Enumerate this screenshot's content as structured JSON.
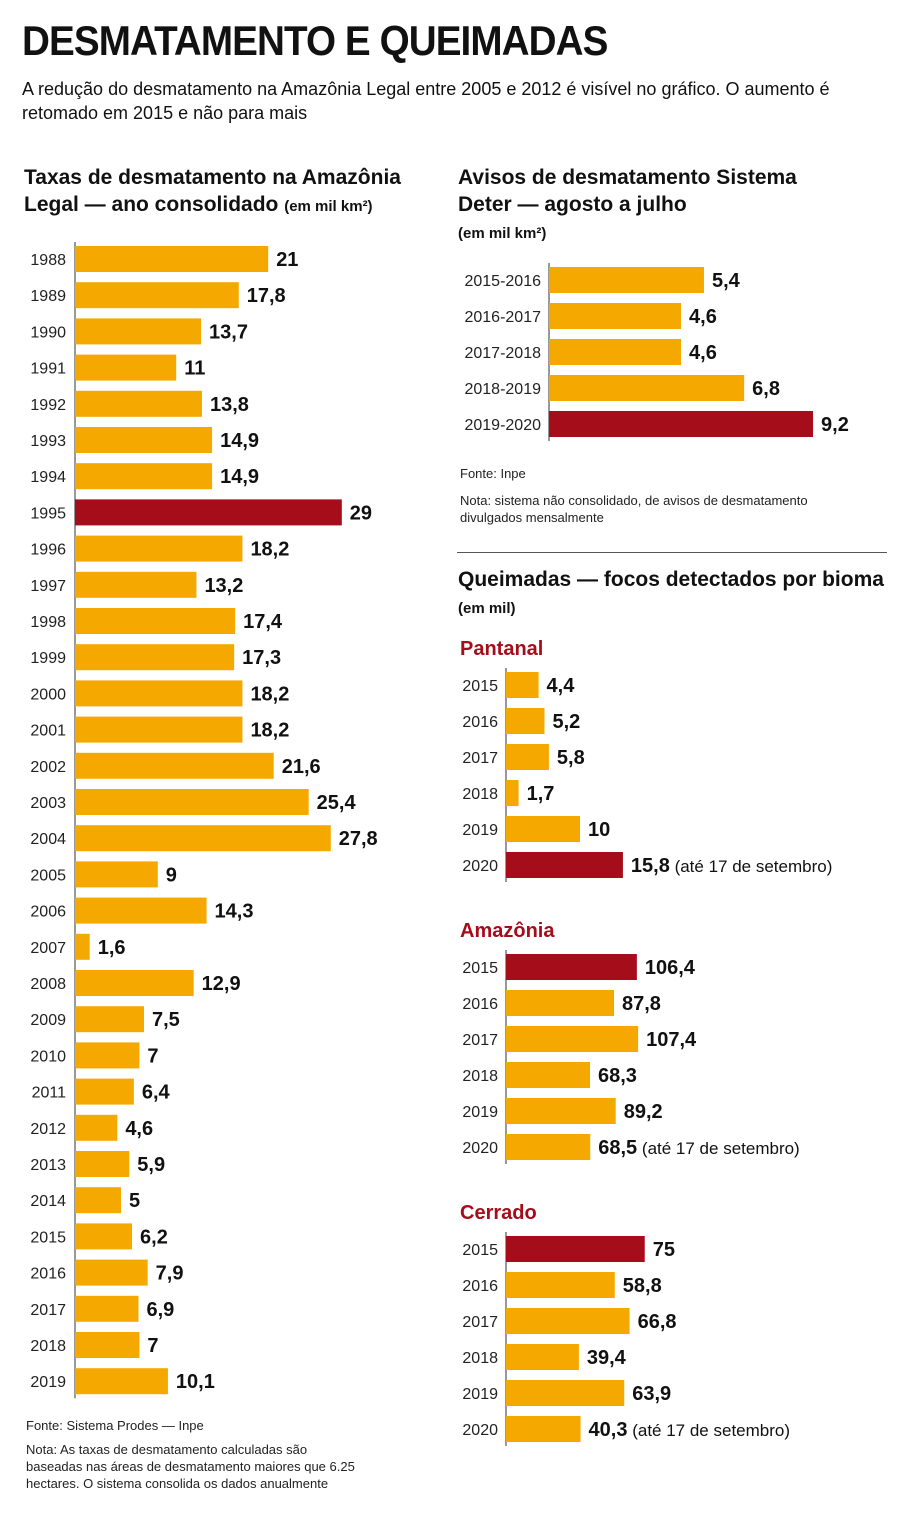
{
  "header": {
    "title": "DESMATAMENTO E QUEIMADAS",
    "subtitle": "A redução do desmatamento na Amazônia Legal entre 2005 e 2012 é visível no gráfico. O aumento é retomado em 2015 e não para mais"
  },
  "colors": {
    "bar": "#f5a800",
    "highlight": "#a50d1a",
    "heading": "#a50d1a"
  },
  "chart_data": [
    {
      "id": "prodes",
      "type": "bar",
      "orientation": "horizontal",
      "title": "Taxas de desmatamento na Amazônia Legal — ano consolidado",
      "unit": "(em mil km²)",
      "categories": [
        "1988",
        "1989",
        "1990",
        "1991",
        "1992",
        "1993",
        "1994",
        "1995",
        "1996",
        "1997",
        "1998",
        "1999",
        "2000",
        "2001",
        "2002",
        "2003",
        "2004",
        "2005",
        "2006",
        "2007",
        "2008",
        "2009",
        "2010",
        "2011",
        "2012",
        "2013",
        "2014",
        "2015",
        "2016",
        "2017",
        "2018",
        "2019"
      ],
      "values": [
        21,
        17.8,
        13.7,
        11,
        13.8,
        14.9,
        14.9,
        29,
        18.2,
        13.2,
        17.4,
        17.3,
        18.2,
        18.2,
        21.6,
        25.4,
        27.8,
        9,
        14.3,
        1.6,
        12.9,
        7.5,
        7,
        6.4,
        4.6,
        5.9,
        5,
        6.2,
        7.9,
        6.9,
        7,
        10.1
      ],
      "labels": [
        "21",
        "17,8",
        "13,7",
        "11",
        "13,8",
        "14,9",
        "14,9",
        "29",
        "18,2",
        "13,2",
        "17,4",
        "17,3",
        "18,2",
        "18,2",
        "21,6",
        "25,4",
        "27,8",
        "9",
        "14,3",
        "1,6",
        "12,9",
        "7,5",
        "7",
        "6,4",
        "4,6",
        "5,9",
        "5",
        "6,2",
        "7,9",
        "6,9",
        "7",
        "10,1"
      ],
      "highlight_index": 7,
      "source": "Fonte: Sistema Prodes — Inpe",
      "note": "Nota: As taxas de desmatamento calculadas são baseadas nas áreas de desmatamento maiores que 6.25 hectares. O sistema consolida os dados anualmente"
    },
    {
      "id": "deter",
      "type": "bar",
      "orientation": "horizontal",
      "title": "Avisos de desmatamento Sistema Deter — agosto a julho",
      "unit": "(em mil km²)",
      "categories": [
        "2015-2016",
        "2016-2017",
        "2017-2018",
        "2018-2019",
        "2019-2020"
      ],
      "values": [
        5.4,
        4.6,
        4.6,
        6.8,
        9.2
      ],
      "labels": [
        "5,4",
        "4,6",
        "4,6",
        "6,8",
        "9,2"
      ],
      "highlight_index": 4,
      "source": "Fonte: Inpe",
      "note": "Nota: sistema não consolidado, de avisos de desmatamento divulgados mensalmente"
    },
    {
      "id": "queimadas",
      "type": "bar",
      "orientation": "horizontal",
      "title": "Queimadas — focos detectados por bioma",
      "unit": "(em mil)",
      "panels": [
        {
          "name": "Pantanal",
          "categories": [
            "2015",
            "2016",
            "2017",
            "2018",
            "2019",
            "2020"
          ],
          "values": [
            4.4,
            5.2,
            5.8,
            1.7,
            10,
            15.8
          ],
          "labels": [
            "4,4",
            "5,2",
            "5,8",
            "1,7",
            "10",
            "15,8"
          ],
          "highlight_index": 5,
          "last_suffix": "(até 17 de setembro)"
        },
        {
          "name": "Amazônia",
          "categories": [
            "2015",
            "2016",
            "2017",
            "2018",
            "2019",
            "2020"
          ],
          "values": [
            106.4,
            87.8,
            107.4,
            68.3,
            89.2,
            68.5
          ],
          "labels": [
            "106,4",
            "87,8",
            "107,4",
            "68,3",
            "89,2",
            "68,5"
          ],
          "highlight_index": 0,
          "last_suffix": "(até 17 de setembro)"
        },
        {
          "name": "Cerrado",
          "categories": [
            "2015",
            "2016",
            "2017",
            "2018",
            "2019",
            "2020"
          ],
          "values": [
            75,
            58.8,
            66.8,
            39.4,
            63.9,
            40.3
          ],
          "labels": [
            "75",
            "58,8",
            "66,8",
            "39,4",
            "63,9",
            "40,3"
          ],
          "highlight_index": 0,
          "last_suffix": "(até 17 de setembro)"
        }
      ]
    }
  ]
}
